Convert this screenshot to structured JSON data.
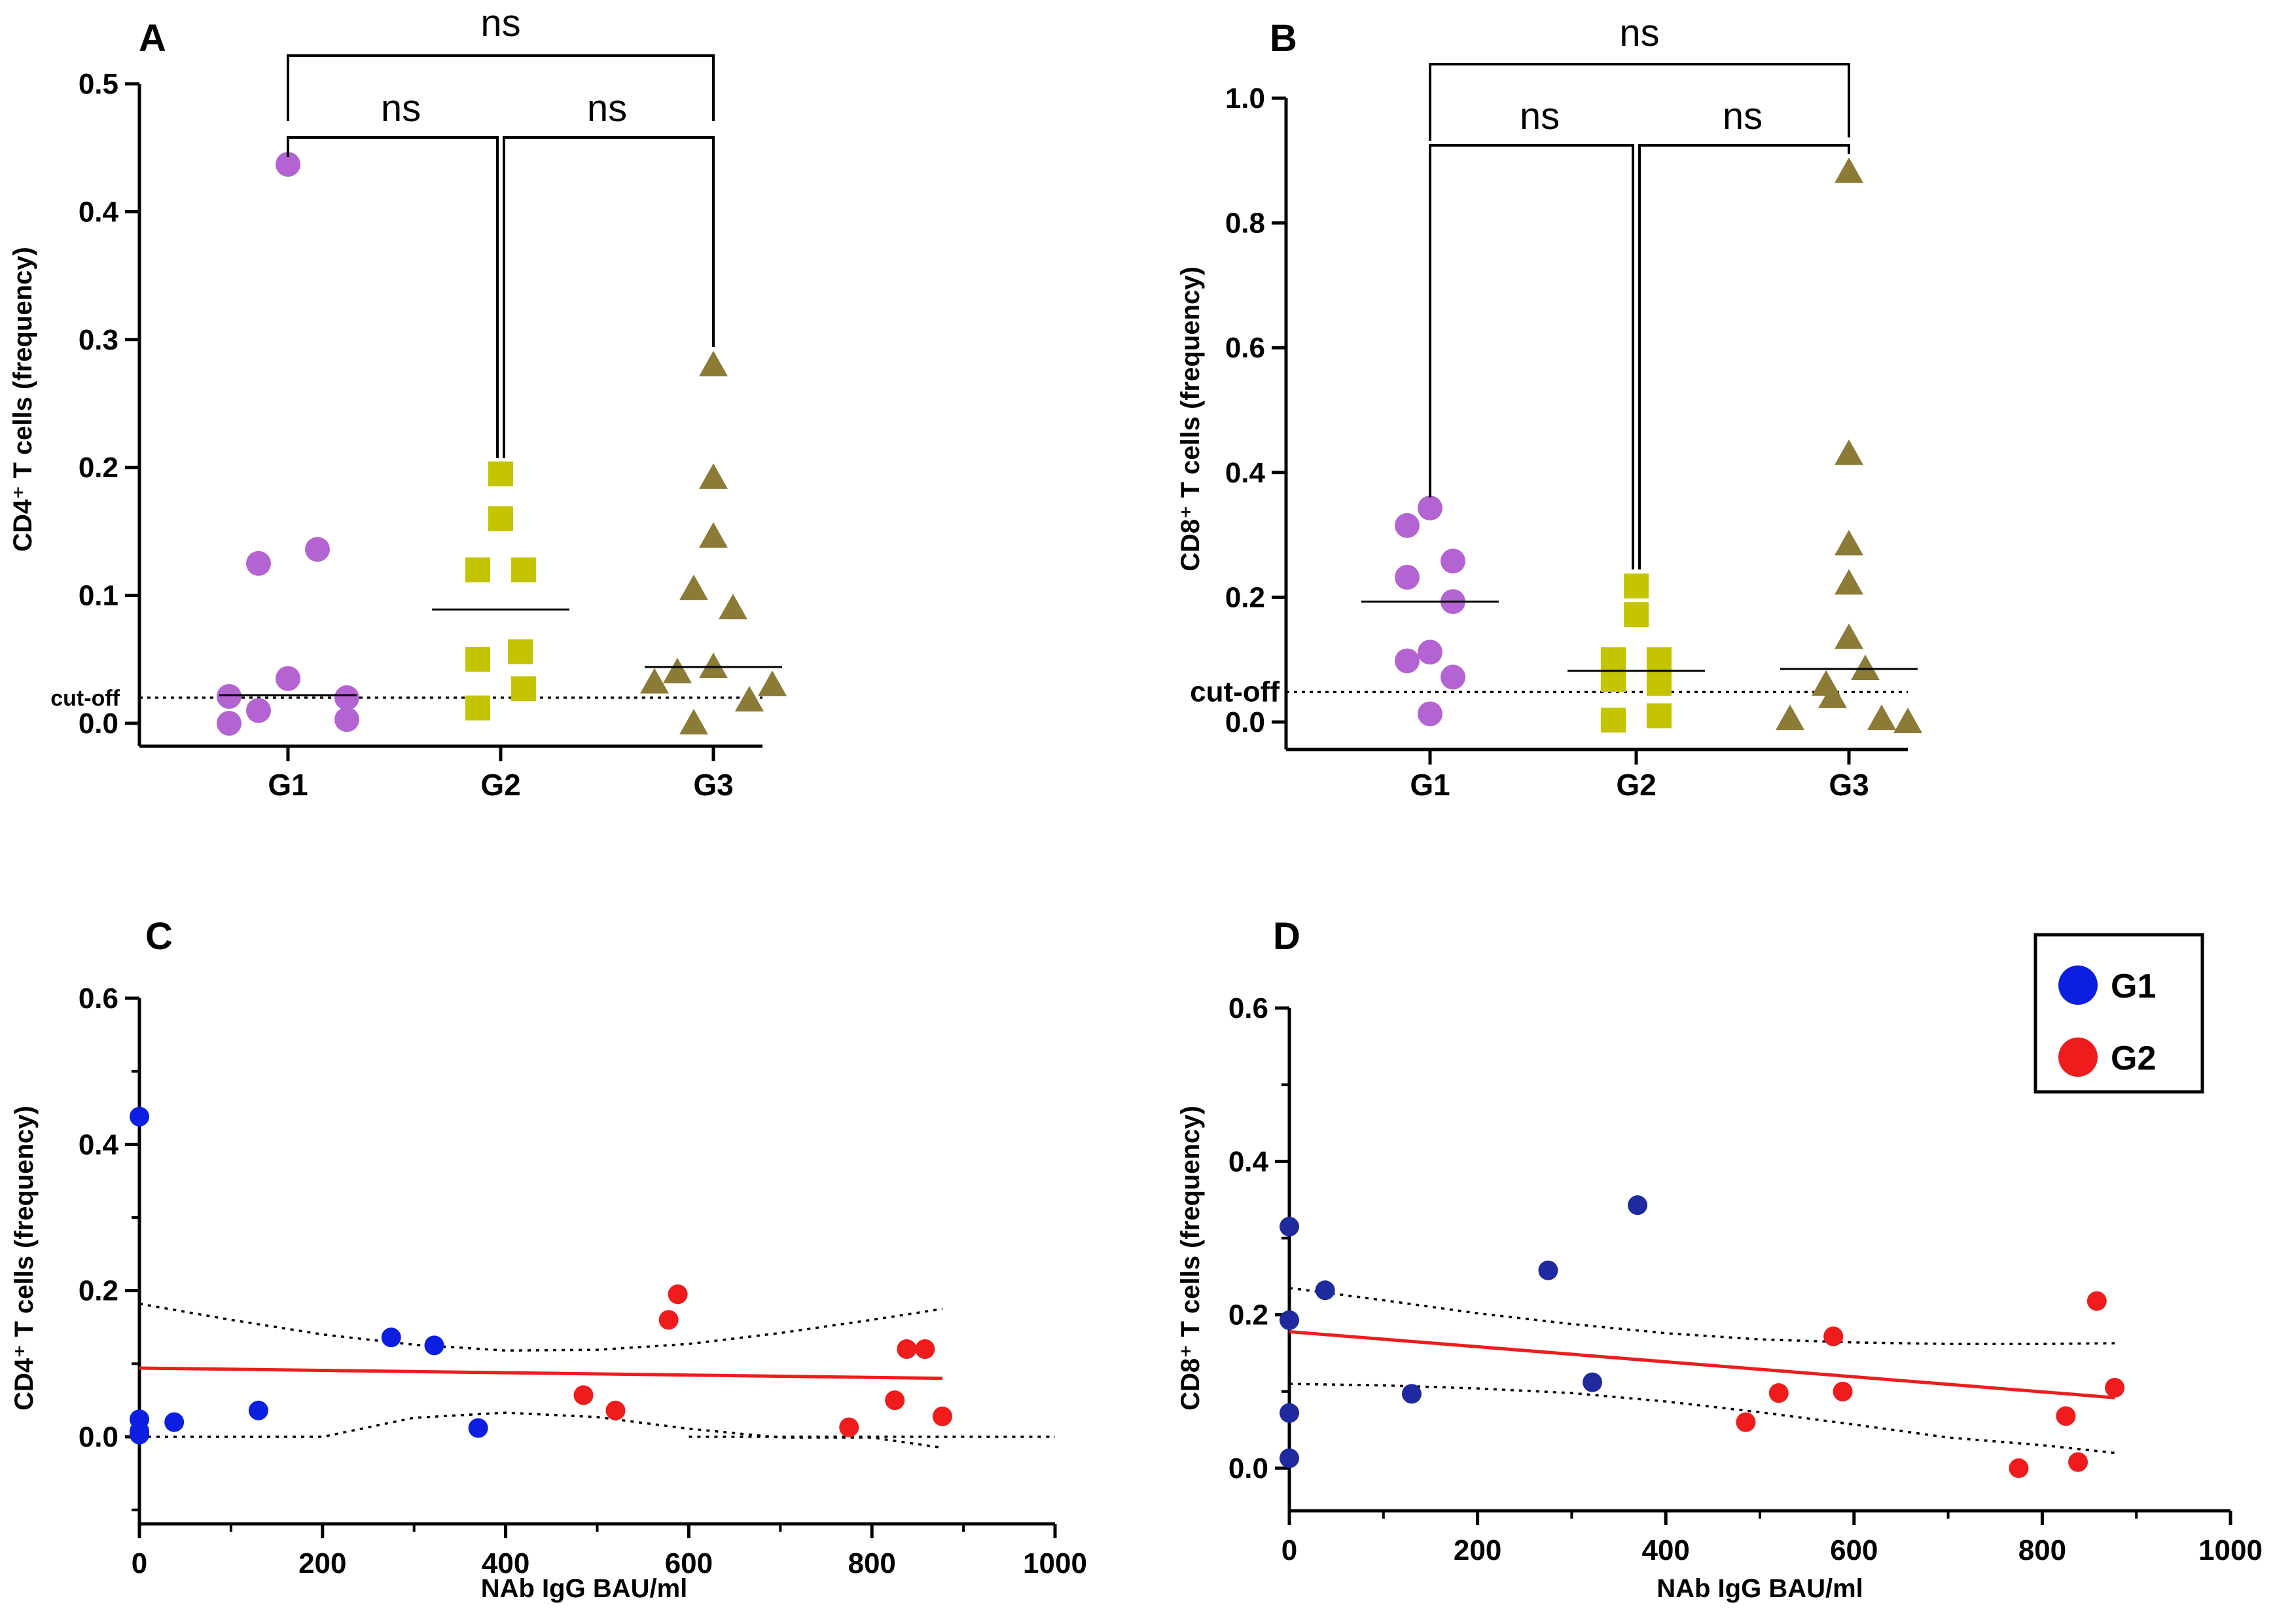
{
  "chart_data": [
    {
      "panel": "A",
      "type": "scatter",
      "subtype": "grouped dot plot with medians",
      "ylabel": "CD4⁺ T cells (frequency)",
      "ylim": [
        0.0,
        0.5
      ],
      "yticks": [
        "0.0",
        "0.1",
        "0.2",
        "0.3",
        "0.4",
        "0.5"
      ],
      "ytick_values": [
        0.0,
        0.1,
        0.2,
        0.3,
        0.4,
        0.5
      ],
      "categories": [
        "G1",
        "G2",
        "G3"
      ],
      "cutoff": {
        "label": "cut-off",
        "value": 0.02
      },
      "series": [
        {
          "name": "G1",
          "marker": "circle",
          "color": "#b464d2",
          "median": 0.022,
          "points": [
            0.437,
            0.125,
            0.136,
            0.035,
            0.021,
            0.02,
            0.01,
            0.003,
            0.0
          ]
        },
        {
          "name": "G2",
          "marker": "square",
          "color": "#c4c400",
          "median": 0.089,
          "points": [
            0.195,
            0.16,
            0.12,
            0.12,
            0.056,
            0.05,
            0.027,
            0.012
          ]
        },
        {
          "name": "G3",
          "marker": "triangle",
          "color": "#8c7a37",
          "median": 0.044,
          "points": [
            0.28,
            0.192,
            0.146,
            0.105,
            0.09,
            0.044,
            0.04,
            0.032,
            0.03,
            0.018,
            0.0
          ]
        }
      ],
      "comparisons": [
        {
          "from": "G1",
          "to": "G3",
          "label": "ns"
        },
        {
          "from": "G1",
          "to": "G2",
          "label": "ns"
        },
        {
          "from": "G2",
          "to": "G3",
          "label": "ns"
        }
      ]
    },
    {
      "panel": "B",
      "type": "scatter",
      "subtype": "grouped dot plot with medians",
      "ylabel": "CD8⁺ T cells (frequency)",
      "ylim": [
        0.0,
        1.0
      ],
      "yticks": [
        "0.0",
        "0.2",
        "0.4",
        "0.6",
        "0.8",
        "1.0"
      ],
      "ytick_values": [
        0.0,
        0.2,
        0.4,
        0.6,
        0.8,
        1.0
      ],
      "categories": [
        "G1",
        "G2",
        "G3"
      ],
      "cutoff": {
        "label": "cut-off",
        "value": 0.048
      },
      "series": [
        {
          "name": "G1",
          "marker": "circle",
          "color": "#b464d2",
          "median": 0.193,
          "points": [
            0.343,
            0.315,
            0.258,
            0.232,
            0.193,
            0.112,
            0.098,
            0.072,
            0.013
          ]
        },
        {
          "name": "G2",
          "marker": "square",
          "color": "#c4c400",
          "median": 0.082,
          "points": [
            0.218,
            0.172,
            0.1,
            0.1,
            0.068,
            0.062,
            0.01,
            0.003
          ]
        },
        {
          "name": "G3",
          "marker": "triangle",
          "color": "#8c7a37",
          "median": 0.085,
          "points": [
            0.882,
            0.43,
            0.285,
            0.222,
            0.135,
            0.085,
            0.06,
            0.04,
            0.005,
            0.005,
            0.0
          ]
        }
      ],
      "comparisons": [
        {
          "from": "G1",
          "to": "G3",
          "label": "ns"
        },
        {
          "from": "G1",
          "to": "G2",
          "label": "ns"
        },
        {
          "from": "G2",
          "to": "G3",
          "label": "ns"
        }
      ]
    },
    {
      "panel": "C",
      "type": "scatter",
      "subtype": "scatter with linear regression and 95% confidence band",
      "xlabel": "NAb IgG BAU/ml",
      "ylabel": "CD4⁺ T cells (frequency)",
      "xlim": [
        0,
        1000
      ],
      "ylim": [
        -0.12,
        0.6
      ],
      "xticks": [
        "0",
        "200",
        "400",
        "600",
        "800",
        "1000"
      ],
      "xtick_values": [
        0,
        200,
        400,
        600,
        800,
        1000
      ],
      "yticks": [
        "0.0",
        "0.2",
        "0.4",
        "0.6"
      ],
      "ytick_values": [
        0.0,
        0.2,
        0.4,
        0.6
      ],
      "series": [
        {
          "name": "G1",
          "color": "#0c1fe0",
          "points": [
            [
              0,
              0.438
            ],
            [
              0,
              0.024
            ],
            [
              0,
              0.008
            ],
            [
              0,
              0.003
            ],
            [
              38,
              0.02
            ],
            [
              130,
              0.036
            ],
            [
              275,
              0.136
            ],
            [
              322,
              0.125
            ],
            [
              370,
              0.012
            ]
          ]
        },
        {
          "name": "G2",
          "color": "#ee1c1c",
          "points": [
            [
              485,
              0.057
            ],
            [
              520,
              0.036
            ],
            [
              578,
              0.16
            ],
            [
              588,
              0.195
            ],
            [
              775,
              0.013
            ],
            [
              825,
              0.05
            ],
            [
              838,
              0.12
            ],
            [
              858,
              0.12
            ],
            [
              877,
              0.028
            ]
          ]
        }
      ],
      "regression": {
        "color": "#ee1c1c",
        "x": [
          0,
          877
        ],
        "y": [
          0.094,
          0.08
        ]
      },
      "ci_upper": {
        "x": [
          0,
          100,
          200,
          300,
          400,
          500,
          600,
          700,
          800,
          877
        ],
        "y": [
          0.182,
          0.16,
          0.14,
          0.126,
          0.118,
          0.119,
          0.127,
          0.142,
          0.16,
          0.175
        ]
      },
      "ci_lower": {
        "x": [
          0,
          100,
          200,
          300,
          400,
          500,
          600,
          700,
          800,
          877
        ],
        "y": [
          0.0,
          0.0,
          0.0,
          0.026,
          0.033,
          0.027,
          0.011,
          -0.001,
          -0.001,
          -0.015
        ]
      }
    },
    {
      "panel": "D",
      "type": "scatter",
      "subtype": "scatter with linear regression and 95% confidence band",
      "xlabel": "NAb IgG BAU/ml",
      "ylabel": "CD8⁺ T cells (frequency)",
      "xlim": [
        0,
        1000
      ],
      "ylim": [
        -0.06,
        0.6
      ],
      "xticks": [
        "0",
        "200",
        "400",
        "600",
        "800",
        "1000"
      ],
      "xtick_values": [
        0,
        200,
        400,
        600,
        800,
        1000
      ],
      "yticks": [
        "0.0",
        "0.2",
        "0.4",
        "0.6"
      ],
      "ytick_values": [
        0.0,
        0.2,
        0.4,
        0.6
      ],
      "series": [
        {
          "name": "G1",
          "color": "#1f2a9e",
          "points": [
            [
              0,
              0.315
            ],
            [
              0,
              0.193
            ],
            [
              0,
              0.072
            ],
            [
              0,
              0.013
            ],
            [
              38,
              0.232
            ],
            [
              130,
              0.097
            ],
            [
              275,
              0.258
            ],
            [
              322,
              0.112
            ],
            [
              370,
              0.343
            ]
          ]
        },
        {
          "name": "G2",
          "color": "#ee1c1c",
          "points": [
            [
              485,
              0.06
            ],
            [
              520,
              0.098
            ],
            [
              578,
              0.172
            ],
            [
              588,
              0.1
            ],
            [
              775,
              0.0
            ],
            [
              825,
              0.068
            ],
            [
              838,
              0.008
            ],
            [
              858,
              0.218
            ],
            [
              877,
              0.105
            ]
          ]
        }
      ],
      "regression": {
        "color": "#ee1c1c",
        "x": [
          0,
          877
        ],
        "y": [
          0.178,
          0.092
        ]
      },
      "ci_upper": {
        "x": [
          0,
          100,
          200,
          300,
          400,
          500,
          600,
          700,
          800,
          877
        ],
        "y": [
          0.235,
          0.219,
          0.202,
          0.188,
          0.176,
          0.168,
          0.164,
          0.162,
          0.162,
          0.163
        ]
      },
      "ci_lower": {
        "x": [
          0,
          100,
          200,
          300,
          400,
          500,
          600,
          700,
          800,
          877
        ],
        "y": [
          0.11,
          0.108,
          0.104,
          0.098,
          0.087,
          0.073,
          0.057,
          0.04,
          0.03,
          0.02
        ]
      }
    }
  ],
  "legend": {
    "position": "top-right",
    "items": [
      {
        "label": "G1",
        "color": "#0c1fe0"
      },
      {
        "label": "G2",
        "color": "#ee1c1c"
      }
    ]
  }
}
